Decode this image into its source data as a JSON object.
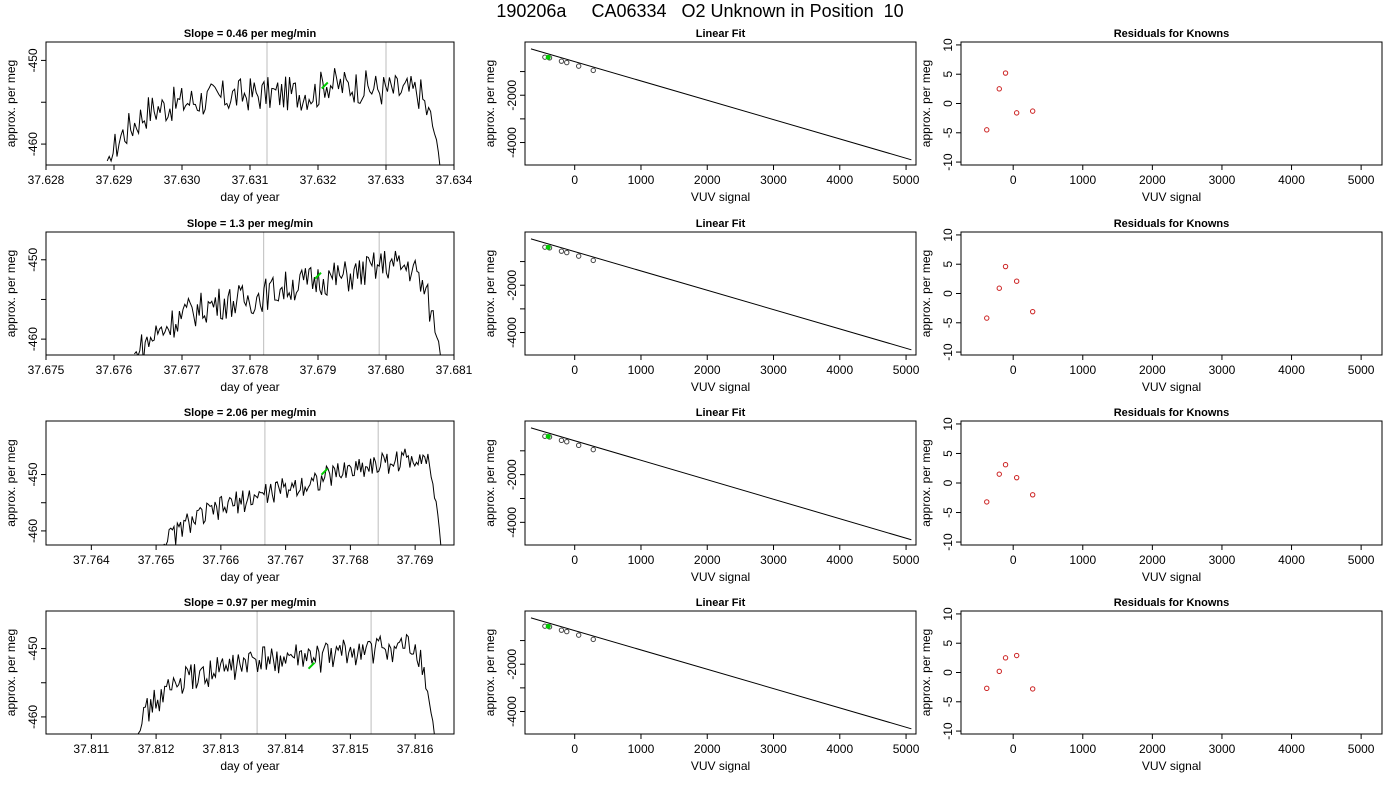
{
  "title": "190206a     CA06334   O2 Unknown in Position  10",
  "colors": {
    "trace": "#000000",
    "marker": "#00cc00",
    "resid": "#cc2222",
    "vline": "#c8c8c8"
  },
  "chart_data": [
    {
      "type": "line",
      "title": "Slope =  0.46  per meg/min",
      "xlabel": "day of year",
      "ylabel": "approx. per meg",
      "xlim": [
        37.628,
        37.634
      ],
      "ylim": [
        -462.5,
        -447.8
      ],
      "xticks": [
        "37.628",
        "37.629",
        "37.630",
        "37.631",
        "37.632",
        "37.633",
        "37.634"
      ],
      "yticks": [
        -460,
        -450
      ],
      "vlines": [
        37.63125,
        37.633
      ],
      "start": 37.6289,
      "end": 37.6338,
      "series": [
        {
          "x": [
            37.6289,
            37.6291,
            37.6295,
            37.63,
            37.6305,
            37.631,
            37.6315,
            37.632,
            37.6321,
            37.6323,
            37.6325,
            37.633,
            37.6335,
            37.6337,
            37.6338
          ],
          "y": [
            -462.5,
            -459.0,
            -456.0,
            -455.0,
            -454.5,
            -454.0,
            -454.0,
            -453.8,
            -452.5,
            -453.0,
            -453.0,
            -453.5,
            -453.8,
            -458.0,
            -462.5
          ]
        }
      ],
      "marker": {
        "x": 37.6321,
        "y": -453.0
      }
    },
    {
      "type": "scatter",
      "title": "Linear Fit",
      "xlabel": "VUV signal",
      "ylabel": "approx. per meg",
      "xlim": [
        -750,
        5150
      ],
      "ylim": [
        -4950,
        250
      ],
      "xticks": [
        0,
        1000,
        2000,
        3000,
        4000,
        5000
      ],
      "yticks": [
        -4000,
        -2000
      ],
      "line": {
        "x": [
          -660,
          5080
        ],
        "y": [
          -40,
          -4730
        ]
      },
      "points": {
        "x": [
          -450,
          -380,
          -200,
          -120,
          60,
          280
        ],
        "y": [
          -390,
          -420,
          -560,
          -620,
          -770,
          -950
        ]
      },
      "green": {
        "x": [
          -400
        ],
        "y": [
          -400
        ]
      }
    },
    {
      "type": "scatter",
      "title": "Residuals for Knowns",
      "xlabel": "VUV signal",
      "ylabel": "approx. per meg",
      "xlim": [
        -750,
        5300
      ],
      "ylim": [
        -10.5,
        10.5
      ],
      "xticks": [
        0,
        1000,
        2000,
        3000,
        4000,
        5000
      ],
      "yticks": [
        -10,
        -5,
        0,
        5,
        10
      ],
      "points": {
        "x": [
          -380,
          -200,
          -110,
          50,
          280
        ],
        "y": [
          -4.5,
          2.5,
          5.2,
          -1.6,
          -1.3
        ]
      }
    },
    {
      "type": "line",
      "title": "Slope =  1.3  per meg/min",
      "xlabel": "day of year",
      "ylabel": "approx. per meg",
      "xlim": [
        37.675,
        37.681
      ],
      "ylim": [
        -462,
        -446.5
      ],
      "xticks": [
        "37.675",
        "37.676",
        "37.677",
        "37.678",
        "37.679",
        "37.680",
        "37.681"
      ],
      "yticks": [
        -460,
        -450
      ],
      "vlines": [
        37.6782,
        37.6799
      ],
      "start": 37.6763,
      "end": 37.6808,
      "series": [
        {
          "x": [
            37.6763,
            37.6766,
            37.677,
            37.6775,
            37.678,
            37.6785,
            37.679,
            37.6795,
            37.68,
            37.6804,
            37.6806,
            37.6808
          ],
          "y": [
            -462.0,
            -459.5,
            -457.0,
            -455.5,
            -455.0,
            -453.5,
            -452.5,
            -452.0,
            -450.5,
            -451.0,
            -454.5,
            -461.5
          ]
        }
      ],
      "marker": {
        "x": 37.679,
        "y": -452.0
      }
    },
    {
      "type": "scatter",
      "title": "Linear Fit",
      "xlabel": "VUV signal",
      "ylabel": "approx. per meg",
      "xlim": [
        -750,
        5150
      ],
      "ylim": [
        -4950,
        250
      ],
      "xticks": [
        0,
        1000,
        2000,
        3000,
        4000,
        5000
      ],
      "yticks": [
        -4000,
        -2000
      ],
      "line": {
        "x": [
          -660,
          5080
        ],
        "y": [
          -40,
          -4730
        ]
      },
      "points": {
        "x": [
          -450,
          -380,
          -200,
          -120,
          60,
          280
        ],
        "y": [
          -390,
          -420,
          -560,
          -620,
          -770,
          -950
        ]
      },
      "green": {
        "x": [
          -400
        ],
        "y": [
          -400
        ]
      }
    },
    {
      "type": "scatter",
      "title": "Residuals for Knowns",
      "xlabel": "VUV signal",
      "ylabel": "approx. per meg",
      "xlim": [
        -750,
        5300
      ],
      "ylim": [
        -10.5,
        10.5
      ],
      "xticks": [
        0,
        1000,
        2000,
        3000,
        4000,
        5000
      ],
      "yticks": [
        -10,
        -5,
        0,
        5,
        10
      ],
      "points": {
        "x": [
          -380,
          -200,
          -110,
          50,
          280
        ],
        "y": [
          -4.2,
          0.9,
          4.6,
          2.1,
          -3.1
        ]
      }
    },
    {
      "type": "line",
      "title": "Slope =  2.06  per meg/min",
      "xlabel": "day of year",
      "ylabel": "approx. per meg",
      "xlim": [
        37.7633,
        37.7696
      ],
      "ylim": [
        -462.5,
        -440.5
      ],
      "xticks": [
        "37.764",
        "37.765",
        "37.766",
        "37.767",
        "37.768",
        "37.769"
      ],
      "yticks": [
        -460,
        -450
      ],
      "vlines": [
        37.76668,
        37.76843
      ],
      "start": 37.7651,
      "end": 37.7694,
      "series": [
        {
          "x": [
            37.7651,
            37.7655,
            37.766,
            37.7665,
            37.767,
            37.7675,
            37.768,
            37.7685,
            37.769,
            37.7691,
            37.7692,
            37.7693,
            37.7694
          ],
          "y": [
            -462.5,
            -458.5,
            -456.0,
            -454.0,
            -452.5,
            -451.0,
            -449.0,
            -448.0,
            -447.0,
            -446.0,
            -447.5,
            -453.0,
            -462.5
          ]
        }
      ],
      "marker": {
        "x": 37.7676,
        "y": -449.5
      }
    },
    {
      "type": "scatter",
      "title": "Linear Fit",
      "xlabel": "VUV signal",
      "ylabel": "approx. per meg",
      "xlim": [
        -750,
        5150
      ],
      "ylim": [
        -4950,
        250
      ],
      "xticks": [
        0,
        1000,
        2000,
        3000,
        4000,
        5000
      ],
      "yticks": [
        -4000,
        -2000
      ],
      "line": {
        "x": [
          -660,
          5080
        ],
        "y": [
          -40,
          -4730
        ]
      },
      "points": {
        "x": [
          -450,
          -380,
          -200,
          -120,
          60,
          280
        ],
        "y": [
          -390,
          -420,
          -560,
          -620,
          -770,
          -950
        ]
      },
      "green": {
        "x": [
          -400
        ],
        "y": [
          -400
        ]
      }
    },
    {
      "type": "scatter",
      "title": "Residuals for Knowns",
      "xlabel": "VUV signal",
      "ylabel": "approx. per meg",
      "xlim": [
        -750,
        5300
      ],
      "ylim": [
        -10.5,
        10.5
      ],
      "xticks": [
        0,
        1000,
        2000,
        3000,
        4000,
        5000
      ],
      "yticks": [
        -10,
        -5,
        0,
        5,
        10
      ],
      "points": {
        "x": [
          -380,
          -200,
          -110,
          50,
          280
        ],
        "y": [
          -3.2,
          1.5,
          3.1,
          0.9,
          -2.0
        ]
      }
    },
    {
      "type": "line",
      "title": "Slope =  0.97  per meg/min",
      "xlabel": "day of year",
      "ylabel": "approx. per meg",
      "xlim": [
        37.8103,
        37.8166
      ],
      "ylim": [
        -462.5,
        -444.5
      ],
      "xticks": [
        "37.811",
        "37.812",
        "37.813",
        "37.814",
        "37.815",
        "37.816"
      ],
      "yticks": [
        -460,
        -450
      ],
      "vlines": [
        37.81356,
        37.81532
      ],
      "start": 37.8117,
      "end": 37.8163,
      "series": [
        {
          "x": [
            37.8117,
            37.8119,
            37.8122,
            37.8125,
            37.813,
            37.8135,
            37.814,
            37.8145,
            37.815,
            37.8155,
            37.816,
            37.8161,
            37.8162,
            37.8163
          ],
          "y": [
            -462.5,
            -458.5,
            -456.0,
            -454.5,
            -453.0,
            -452.0,
            -451.5,
            -451.5,
            -450.5,
            -450.0,
            -450.0,
            -452.0,
            -457.0,
            -462.5
          ]
        }
      ],
      "marker": {
        "x": 37.8144,
        "y": -452.5
      }
    },
    {
      "type": "scatter",
      "title": "Linear Fit",
      "xlabel": "VUV signal",
      "ylabel": "approx. per meg",
      "xlim": [
        -750,
        5150
      ],
      "ylim": [
        -4950,
        250
      ],
      "xticks": [
        0,
        1000,
        2000,
        3000,
        4000,
        5000
      ],
      "yticks": [
        -4000,
        -2000
      ],
      "line": {
        "x": [
          -660,
          5080
        ],
        "y": [
          -40,
          -4730
        ]
      },
      "points": {
        "x": [
          -450,
          -380,
          -200,
          -120,
          60,
          280
        ],
        "y": [
          -390,
          -420,
          -560,
          -620,
          -770,
          -950
        ]
      },
      "green": {
        "x": [
          -400
        ],
        "y": [
          -400
        ]
      }
    },
    {
      "type": "scatter",
      "title": "Residuals for Knowns",
      "xlabel": "VUV signal",
      "ylabel": "approx. per meg",
      "xlim": [
        -750,
        5300
      ],
      "ylim": [
        -10.5,
        10.5
      ],
      "xticks": [
        0,
        1000,
        2000,
        3000,
        4000,
        5000
      ],
      "yticks": [
        -10,
        -5,
        0,
        5,
        10
      ],
      "points": {
        "x": [
          -380,
          -200,
          -110,
          50,
          280
        ],
        "y": [
          -2.7,
          0.2,
          2.5,
          2.9,
          -2.8
        ]
      }
    }
  ]
}
